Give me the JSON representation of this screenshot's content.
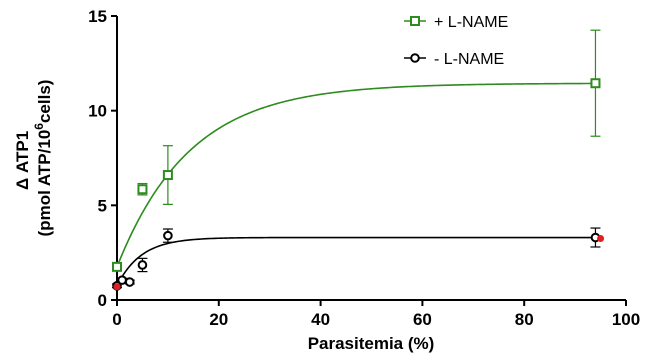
{
  "chart_data": {
    "type": "scatter",
    "xlabel": "Parasitemia  (%)",
    "ylabel_line1": "Δ ATP1",
    "ylabel_line2_prefix": "(pmol ATP/10",
    "ylabel_line2_sup": "6",
    "ylabel_line2_suffix": "cells)",
    "xlim": [
      0,
      100
    ],
    "ylim": [
      0,
      15
    ],
    "x_ticks": [
      0,
      20,
      40,
      60,
      80,
      100
    ],
    "y_ticks": [
      0,
      5,
      10,
      15
    ],
    "grid": false,
    "legend_position": "top-right",
    "series": [
      {
        "name": "+ L-NAME",
        "color": "#2e8b1f",
        "marker": "square-open",
        "points": [
          {
            "x": 0,
            "y": 1.75,
            "err": 0.2
          },
          {
            "x": 5,
            "y": 5.85,
            "err": 0.3
          },
          {
            "x": 10,
            "y": 6.6,
            "err": 1.55
          },
          {
            "x": 94,
            "y": 11.45,
            "err": 2.8
          }
        ],
        "fit": {
          "y0": 1.75,
          "plateau": 11.45,
          "k": 0.07
        }
      },
      {
        "name": "- L-NAME",
        "color": "#000000",
        "marker": "circle-open",
        "points": [
          {
            "x": 0,
            "y": 0.75,
            "err": 0.1
          },
          {
            "x": 1,
            "y": 1.05,
            "err": 0.1
          },
          {
            "x": 2.5,
            "y": 0.95,
            "err": 0.1
          },
          {
            "x": 5,
            "y": 1.85,
            "err": 0.35
          },
          {
            "x": 10,
            "y": 3.4,
            "err": 0.35
          },
          {
            "x": 94,
            "y": 3.3,
            "err": 0.5
          }
        ],
        "fit": {
          "y0": 0.75,
          "plateau": 3.3,
          "k": 0.21
        }
      }
    ],
    "highlight_points": [
      {
        "x": 0,
        "y": 0.7
      },
      {
        "x": 95,
        "y": 3.25
      }
    ],
    "highlight_color": "#e02020"
  }
}
